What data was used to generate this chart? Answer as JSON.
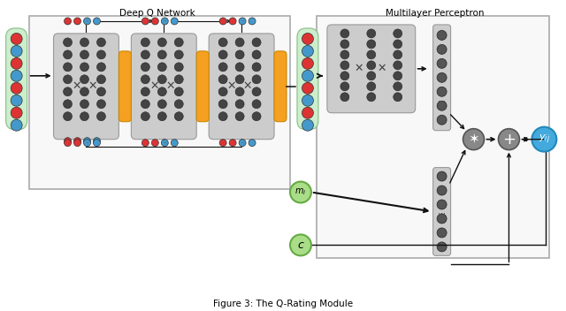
{
  "title": "Figure 3: The Q-Rating Module",
  "dqn_label": "Deep Q Network",
  "mlp_label": "Multilayer Perceptron",
  "bg_color": "#ffffff",
  "fig_width": 6.4,
  "fig_height": 3.52,
  "left_input_colors": [
    "#dd3333",
    "#4499cc",
    "#dd3333",
    "#4499cc",
    "#dd3333",
    "#4499cc",
    "#dd3333",
    "#4499cc"
  ],
  "right_dqn_colors": [
    "#dd3333",
    "#4499cc",
    "#dd3333",
    "#4499cc",
    "#dd3333",
    "#4499cc",
    "#dd3333",
    "#4499cc"
  ],
  "dot_top_colors": [
    "#dd3333",
    "#dd3333",
    "#4499cc",
    "#4499cc"
  ],
  "dot_bot_colors": [
    "#dd3333",
    "#dd3333",
    "#4499cc",
    "#4499cc"
  ]
}
